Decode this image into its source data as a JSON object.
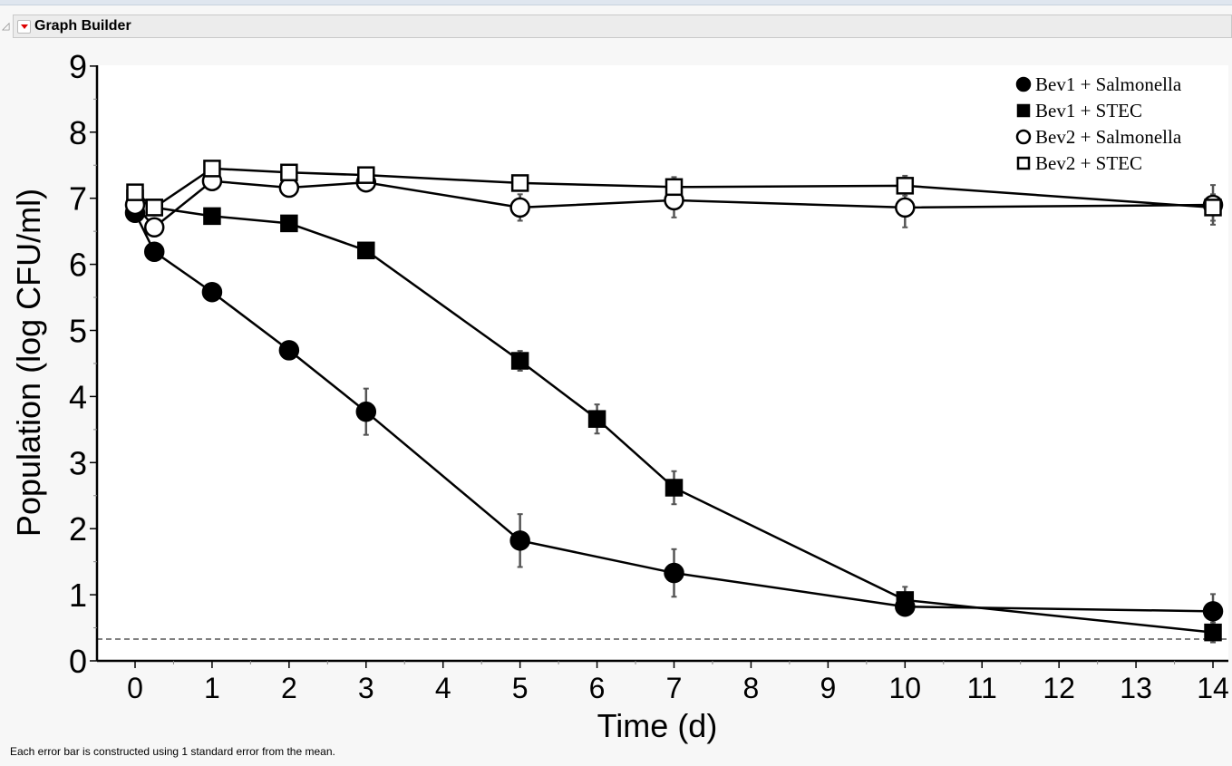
{
  "window": {
    "title": "Graph Builder"
  },
  "footnote": "Each error bar is constructed using 1 standard error from the mean.",
  "chart_data": {
    "type": "line",
    "title": "",
    "xlabel": "Time (d)",
    "ylabel": "Population (log CFU/ml)",
    "xlim": [
      -0.5,
      14.2
    ],
    "ylim": [
      0,
      9
    ],
    "xticks": [
      0,
      1,
      2,
      3,
      4,
      5,
      6,
      7,
      8,
      9,
      10,
      11,
      12,
      13,
      14
    ],
    "yticks": [
      0,
      1,
      2,
      3,
      4,
      5,
      6,
      7,
      8,
      9
    ],
    "grid": false,
    "legend_position": "top-right",
    "reference_line": {
      "y": 0.33,
      "style": "dashed"
    },
    "series": [
      {
        "name": "Bev1 + Salmonella",
        "marker": "filled-circle",
        "x": [
          0,
          0.25,
          1,
          2,
          3,
          5,
          7,
          10,
          14
        ],
        "y": [
          6.78,
          6.19,
          5.58,
          4.7,
          3.77,
          1.82,
          1.33,
          0.82,
          0.75
        ],
        "se": [
          0.05,
          0.03,
          0.03,
          0.08,
          0.35,
          0.4,
          0.36,
          0.12,
          0.26
        ]
      },
      {
        "name": "Bev1 + STEC",
        "marker": "filled-square",
        "x": [
          0,
          0.25,
          1,
          2,
          3,
          5,
          6,
          7,
          10,
          14
        ],
        "y": [
          7.0,
          6.86,
          6.73,
          6.62,
          6.21,
          4.54,
          3.66,
          2.62,
          0.92,
          0.43
        ],
        "se": [
          0.05,
          0.03,
          0.03,
          0.04,
          0.04,
          0.15,
          0.22,
          0.25,
          0.2,
          0.15
        ]
      },
      {
        "name": "Bev2 + Salmonella",
        "marker": "open-circle",
        "x": [
          0,
          0.25,
          1,
          2,
          3,
          5,
          7,
          10,
          14
        ],
        "y": [
          6.9,
          6.56,
          7.26,
          7.16,
          7.24,
          6.86,
          6.97,
          6.86,
          6.9
        ],
        "se": [
          0.05,
          0.03,
          0.1,
          0.1,
          0.1,
          0.2,
          0.26,
          0.3,
          0.3
        ]
      },
      {
        "name": "Bev2 + STEC",
        "marker": "open-square",
        "x": [
          0,
          0.25,
          1,
          2,
          3,
          5,
          7,
          10,
          14
        ],
        "y": [
          7.09,
          6.86,
          7.45,
          7.39,
          7.35,
          7.23,
          7.17,
          7.19,
          6.86
        ],
        "se": [
          0.03,
          0.03,
          0.03,
          0.03,
          0.03,
          0.03,
          0.15,
          0.15,
          0.2
        ]
      }
    ]
  }
}
